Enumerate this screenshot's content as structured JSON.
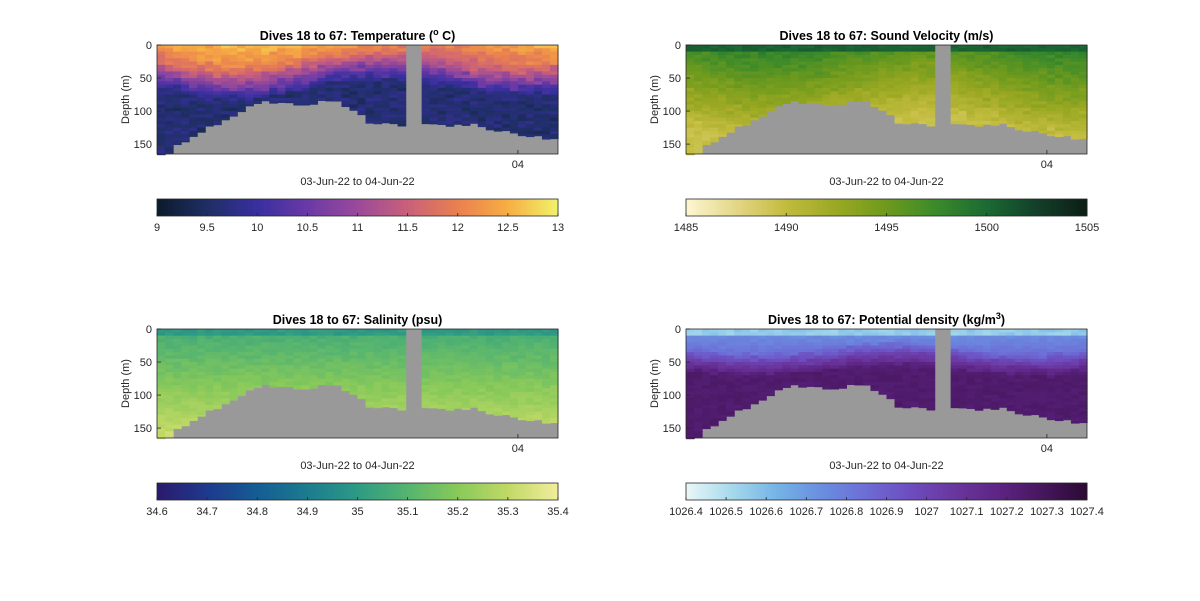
{
  "figure": {
    "panels": [
      {
        "id": "temperature",
        "title_main": "Dives 18 to 67: Temperature (",
        "title_sup": "o",
        "title_end": " C)",
        "ylabel": "Depth (m)",
        "xlabel": "03-Jun-22 to 04-Jun-22",
        "x_tick_label": "04",
        "y_ticks": [
          "0",
          "50",
          "100",
          "150"
        ],
        "colorbar_ticks": [
          "9",
          "9.5",
          "10",
          "10.5",
          "11",
          "11.5",
          "12",
          "12.5",
          "13"
        ],
        "colormap": [
          "#0d1b2e",
          "#1f2f66",
          "#3a2fa0",
          "#6a3aa6",
          "#9a4a9a",
          "#c9607a",
          "#e98050",
          "#f7ad42",
          "#f1f06a"
        ],
        "variable": "temperature",
        "surface_hot": true
      },
      {
        "id": "sound-velocity",
        "title_main": "Dives 18 to 67: Sound Velocity (m/s)",
        "title_sup": "",
        "title_end": "",
        "ylabel": "Depth (m)",
        "xlabel": "03-Jun-22 to 04-Jun-22",
        "x_tick_label": "04",
        "y_ticks": [
          "0",
          "50",
          "100",
          "150"
        ],
        "colorbar_ticks": [
          "1485",
          "1490",
          "1495",
          "1500",
          "1505"
        ],
        "colormap": [
          "#fbf6cf",
          "#e2d685",
          "#c1bb3d",
          "#9aa822",
          "#6d9a1e",
          "#3b8a2a",
          "#1b6b34",
          "#13402a",
          "#0c1f16"
        ],
        "variable": "sound"
      },
      {
        "id": "salinity",
        "title_main": "Dives 18 to 67: Salinity (psu)",
        "title_sup": "",
        "title_end": "",
        "ylabel": "Depth (m)",
        "xlabel": "03-Jun-22 to 04-Jun-22",
        "x_tick_label": "04",
        "y_ticks": [
          "0",
          "50",
          "100",
          "150"
        ],
        "colorbar_ticks": [
          "34.6",
          "34.7",
          "34.8",
          "34.9",
          "35",
          "35.1",
          "35.2",
          "35.3",
          "35.4"
        ],
        "colormap": [
          "#2a1b6e",
          "#1e3a8e",
          "#155d94",
          "#1b7c8f",
          "#2e9a84",
          "#55b470",
          "#87c95a",
          "#bfd865",
          "#f1ec9a"
        ],
        "variable": "salinity"
      },
      {
        "id": "potential-density",
        "title_main": "Dives 18 to 67: Potential density (kg/m",
        "title_sup": "3",
        "title_end": ")",
        "ylabel": "Depth (m)",
        "xlabel": "03-Jun-22 to 04-Jun-22",
        "x_tick_label": "04",
        "y_ticks": [
          "0",
          "50",
          "100",
          "150"
        ],
        "colorbar_ticks": [
          "1026.4",
          "1026.5",
          "1026.6",
          "1026.7",
          "1026.8",
          "1026.9",
          "1027",
          "1027.1",
          "1027.2",
          "1027.3",
          "1027.4"
        ],
        "colormap": [
          "#e8f6f7",
          "#a6d9ec",
          "#75b4e6",
          "#6a8fe0",
          "#6d6ed6",
          "#6d4ec0",
          "#6a379f",
          "#5e2585",
          "#47175f",
          "#2b0b35"
        ],
        "variable": "density"
      }
    ]
  },
  "chart_data": [
    {
      "type": "heatmap",
      "title": "Dives 18 to 67: Temperature (o C)",
      "xlabel": "03-Jun-22 to 04-Jun-22",
      "ylabel": "Depth (m)",
      "ylim": [
        0,
        165
      ],
      "y_reversed": true,
      "y_ticks": [
        0,
        50,
        100,
        150
      ],
      "x_ticks": [
        "04"
      ],
      "colorbar_range": [
        9,
        13
      ],
      "colorbar_ticks": [
        9,
        9.5,
        10,
        10.5,
        11,
        11.5,
        12,
        12.5,
        13
      ],
      "surface_value_approx": 12.5,
      "bottom_value_approx": 9.7,
      "data_gap": true
    },
    {
      "type": "heatmap",
      "title": "Dives 18 to 67: Sound Velocity (m/s)",
      "xlabel": "03-Jun-22 to 04-Jun-22",
      "ylabel": "Depth (m)",
      "ylim": [
        0,
        165
      ],
      "y_reversed": true,
      "y_ticks": [
        0,
        50,
        100,
        150
      ],
      "x_ticks": [
        "04"
      ],
      "colorbar_range": [
        1485,
        1505
      ],
      "colorbar_ticks": [
        1485,
        1490,
        1495,
        1500,
        1505
      ],
      "surface_value_approx": 1498,
      "bottom_value_approx": 1490,
      "data_gap": true
    },
    {
      "type": "heatmap",
      "title": "Dives 18 to 67: Salinity (psu)",
      "xlabel": "03-Jun-22 to 04-Jun-22",
      "ylabel": "Depth (m)",
      "ylim": [
        0,
        165
      ],
      "y_reversed": true,
      "y_ticks": [
        0,
        50,
        100,
        150
      ],
      "x_ticks": [
        "04"
      ],
      "colorbar_range": [
        34.6,
        35.4
      ],
      "colorbar_ticks": [
        34.6,
        34.7,
        34.8,
        34.9,
        35,
        35.1,
        35.2,
        35.3,
        35.4
      ],
      "surface_value_approx": 35.05,
      "bottom_value_approx": 35.3,
      "data_gap": true
    },
    {
      "type": "heatmap",
      "title": "Dives 18 to 67: Potential density (kg/m3)",
      "xlabel": "03-Jun-22 to 04-Jun-22",
      "ylabel": "Depth (m)",
      "ylim": [
        0,
        165
      ],
      "y_reversed": true,
      "y_ticks": [
        0,
        50,
        100,
        150
      ],
      "x_ticks": [
        "04"
      ],
      "colorbar_range": [
        1026.4,
        1027.4
      ],
      "colorbar_ticks": [
        1026.4,
        1026.5,
        1026.6,
        1026.7,
        1026.8,
        1026.9,
        1027,
        1027.1,
        1027.2,
        1027.3,
        1027.4
      ],
      "surface_value_approx": 1026.6,
      "bottom_value_approx": 1027.2,
      "data_gap": true
    }
  ]
}
